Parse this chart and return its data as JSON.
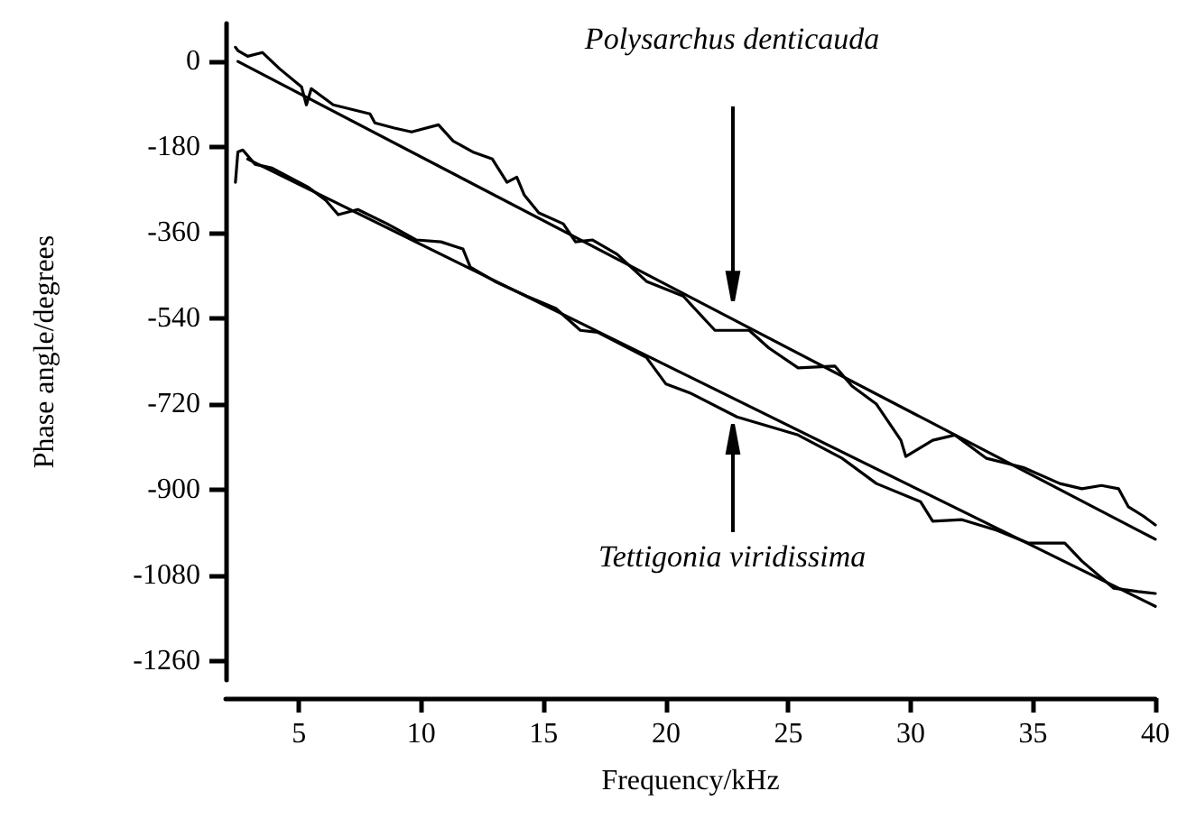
{
  "chart_data": {
    "type": "line",
    "xlabel": "Frequency/kHz",
    "ylabel": "Phase angle/degrees",
    "xlim": [
      2,
      40
    ],
    "ylim": [
      -1300,
      80
    ],
    "xticks": [
      5,
      10,
      15,
      20,
      25,
      30,
      35,
      40
    ],
    "yticks": [
      0,
      -180,
      -360,
      -540,
      -720,
      -900,
      -1080,
      -1260
    ],
    "grid": false,
    "marker": "none",
    "line_style": "solid",
    "series": [
      {
        "color": "#000000",
        "x": [
          2.4,
          2.5,
          2.9,
          3.5,
          4.2,
          5.1,
          5.3,
          5.5,
          6.4,
          7.9,
          8.1,
          8.9,
          9.6,
          10.7,
          11.3,
          12.1,
          12.9,
          13.5,
          13.9,
          14.2,
          14.8,
          15.8,
          16.3,
          17,
          18,
          19.2,
          20.7,
          22,
          23.4,
          24.2,
          25.4,
          26.9,
          27.6,
          28.6,
          29.6,
          29.8,
          30.9,
          31.8,
          33.1,
          34.6,
          36.1,
          37,
          37.8,
          38.5,
          38.9,
          39.5,
          40
        ],
        "values": [
          30,
          23,
          11,
          19,
          -15,
          -53,
          -91,
          -57,
          -91,
          -110,
          -129,
          -140,
          -148,
          -133,
          -167,
          -190,
          -205,
          -254,
          -243,
          -280,
          -318,
          -341,
          -379,
          -375,
          -405,
          -462,
          -493,
          -565,
          -565,
          -602,
          -644,
          -640,
          -682,
          -720,
          -796,
          -830,
          -796,
          -785,
          -834,
          -853,
          -887,
          -898,
          -891,
          -898,
          -936,
          -955,
          -974
        ]
      },
      {
        "color": "#000000",
        "x": [
          2.5,
          40
        ],
        "values": [
          0,
          -1004
        ]
      },
      {
        "color": "#000000",
        "x": [
          2.4,
          2.5,
          2.7,
          3.2,
          3.9,
          5.4,
          6.1,
          6.6,
          7.4,
          8.6,
          9.8,
          10.8,
          11.7,
          12,
          13,
          14.3,
          15.5,
          16.5,
          17.2,
          19.2,
          20,
          21,
          22.9,
          25.4,
          27.2,
          28.6,
          30.4,
          30.9,
          32.1,
          33.5,
          34.8,
          36.3,
          37,
          38.3,
          39.3,
          40
        ],
        "values": [
          -254,
          -190,
          -186,
          -216,
          -224,
          -265,
          -292,
          -322,
          -311,
          -341,
          -375,
          -379,
          -394,
          -432,
          -462,
          -493,
          -519,
          -565,
          -569,
          -622,
          -678,
          -697,
          -747,
          -785,
          -834,
          -887,
          -925,
          -966,
          -963,
          -985,
          -1012,
          -1012,
          -1050,
          -1107,
          -1114,
          -1118
        ]
      },
      {
        "color": "#000000",
        "x": [
          2.9,
          40
        ],
        "values": [
          -205,
          -1145
        ]
      }
    ],
    "annotations": [
      "Polysarchus denticauda",
      "Tettigonia viridissima"
    ]
  }
}
